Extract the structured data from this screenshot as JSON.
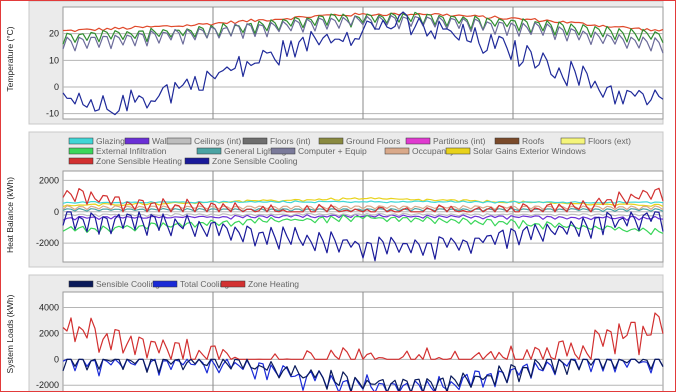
{
  "chart_data": [
    {
      "type": "line",
      "title": "",
      "xlabel": "",
      "ylabel": "Temperature (°C)",
      "ylim": [
        -12,
        30
      ],
      "yticks": [
        20,
        10,
        0,
        -10
      ],
      "legend": [],
      "grid": true,
      "series": [
        {
          "key": "zone_top",
          "color": "#e0492b",
          "profile": [
            [
              0,
              21
            ],
            [
              0.2,
              23
            ],
            [
              0.45,
              27
            ],
            [
              0.6,
              27.5
            ],
            [
              0.8,
              25
            ],
            [
              1,
              21
            ]
          ],
          "noise": 0.6,
          "oscAmp": 0
        },
        {
          "key": "zone_mid",
          "color": "#2f8c2f",
          "profile": [
            [
              0,
              19
            ],
            [
              0.2,
              21
            ],
            [
              0.45,
              26
            ],
            [
              0.6,
              26.5
            ],
            [
              0.8,
              23.5
            ],
            [
              1,
              19
            ]
          ],
          "noise": 0.5,
          "oscAmp": 3.5
        },
        {
          "key": "zone_low",
          "color": "#6b6b9a",
          "profile": [
            [
              0,
              17
            ],
            [
              0.2,
              20
            ],
            [
              0.45,
              25
            ],
            [
              0.6,
              25.5
            ],
            [
              0.8,
              22
            ],
            [
              1,
              16
            ]
          ],
          "noise": 0.5,
          "oscAmp": 4
        },
        {
          "key": "outside",
          "color": "#1f2a9a",
          "profile": [
            [
              0,
              -4
            ],
            [
              0.05,
              -9
            ],
            [
              0.15,
              -3
            ],
            [
              0.3,
              8
            ],
            [
              0.45,
              20
            ],
            [
              0.55,
              24
            ],
            [
              0.65,
              20
            ],
            [
              0.8,
              10
            ],
            [
              0.92,
              -2
            ],
            [
              1,
              -6
            ]
          ],
          "noise": 4.5,
          "oscAmp": 1.5
        }
      ]
    },
    {
      "type": "line",
      "title": "",
      "xlabel": "",
      "ylabel": "Heat Balance (kWh)",
      "ylim": [
        -3200,
        2600
      ],
      "yticks": [
        2000,
        0,
        -2000
      ],
      "grid": true,
      "legend": [
        {
          "label": "Glazing",
          "color": "#3fd6d6"
        },
        {
          "label": "Walls",
          "color": "#6a2fd6"
        },
        {
          "label": "Ceilings (int)",
          "color": "#bdbdbd"
        },
        {
          "label": "Floors (int)",
          "color": "#6e6e6e"
        },
        {
          "label": "Ground Floors",
          "color": "#8a8a40"
        },
        {
          "label": "Partitions (int)",
          "color": "#e03ad0"
        },
        {
          "label": "Roofs",
          "color": "#7a4a2a"
        },
        {
          "label": "Floors (ext)",
          "color": "#f5f57a"
        },
        {
          "label": "External Infiltration",
          "color": "#3ad65a"
        },
        {
          "label": "General Lighting",
          "color": "#4aa3a3"
        },
        {
          "label": "Computer + Equip",
          "color": "#7a7a9a"
        },
        {
          "label": "Occupancy",
          "color": "#d9a98a"
        },
        {
          "label": "Solar Gains Exterior Windows",
          "color": "#e8d21a"
        },
        {
          "label": "Zone Sensible Heating",
          "color": "#d23030"
        },
        {
          "label": "Zone Sensible Cooling",
          "color": "#1a1a9a"
        }
      ],
      "series": [
        {
          "key": "solar",
          "color": "#e8d21a",
          "profile": [
            [
              0,
              400
            ],
            [
              0.5,
              850
            ],
            [
              1,
              400
            ]
          ],
          "noise": 60,
          "oscAmp": 50
        },
        {
          "key": "glazing",
          "color": "#3fd6d6",
          "profile": [
            [
              0,
              600
            ],
            [
              0.5,
              650
            ],
            [
              1,
              600
            ]
          ],
          "noise": 40,
          "oscAmp": 40
        },
        {
          "key": "occupancy",
          "color": "#d9a98a",
          "profile": [
            [
              0,
              300
            ],
            [
              0.5,
              320
            ],
            [
              1,
              300
            ]
          ],
          "noise": 30,
          "oscAmp": 180
        },
        {
          "key": "lighting",
          "color": "#4aa3a3",
          "profile": [
            [
              0,
              150
            ],
            [
              1,
              150
            ]
          ],
          "noise": 20,
          "oscAmp": 120
        },
        {
          "key": "walls",
          "color": "#6a2fd6",
          "profile": [
            [
              0,
              -400
            ],
            [
              0.5,
              -250
            ],
            [
              1,
              -400
            ]
          ],
          "noise": 60,
          "oscAmp": 120
        },
        {
          "key": "ceilings",
          "color": "#bdbdbd",
          "profile": [
            [
              0,
              -200
            ],
            [
              0.5,
              -150
            ],
            [
              1,
              -200
            ]
          ],
          "noise": 40,
          "oscAmp": 80
        },
        {
          "key": "infiltration",
          "color": "#3ad65a",
          "profile": [
            [
              0,
              -1100
            ],
            [
              0.25,
              -700
            ],
            [
              0.5,
              -300
            ],
            [
              0.75,
              -700
            ],
            [
              1,
              -1200
            ]
          ],
          "noise": 120,
          "oscAmp": 250
        },
        {
          "key": "heating",
          "color": "#d23030",
          "profile": [
            [
              0,
              1200
            ],
            [
              0.1,
              700
            ],
            [
              0.25,
              200
            ],
            [
              0.35,
              0
            ],
            [
              0.7,
              0
            ],
            [
              0.85,
              300
            ],
            [
              1,
              1300
            ]
          ],
          "noise": 250,
          "oscAmp": 700,
          "positive": true
        },
        {
          "key": "cooling",
          "color": "#1a1a9a",
          "profile": [
            [
              0,
              -300
            ],
            [
              0.2,
              -700
            ],
            [
              0.4,
              -1700
            ],
            [
              0.55,
              -2100
            ],
            [
              0.7,
              -1700
            ],
            [
              0.85,
              -800
            ],
            [
              1,
              -300
            ]
          ],
          "noise": 300,
          "oscAmp": 900,
          "negative": true
        }
      ]
    },
    {
      "type": "line",
      "title": "",
      "xlabel": "",
      "ylabel": "System Loads (kWh)",
      "ylim": [
        -2600,
        5200
      ],
      "yticks": [
        4000,
        2000,
        0,
        -2000
      ],
      "grid": true,
      "legend": [
        {
          "label": "Sensible Cooling",
          "color": "#0a1a5a"
        },
        {
          "label": "Total Cooling",
          "color": "#1a2ad6"
        },
        {
          "label": "Zone Heating",
          "color": "#d23030"
        }
      ],
      "series": [
        {
          "key": "zone_heating",
          "color": "#d23030",
          "profile": [
            [
              0,
              2600
            ],
            [
              0.1,
              1500
            ],
            [
              0.25,
              300
            ],
            [
              0.32,
              0
            ],
            [
              0.75,
              0
            ],
            [
              0.85,
              700
            ],
            [
              1,
              2800
            ]
          ],
          "noise": 700,
          "oscAmp": 1400,
          "positive": true
        },
        {
          "key": "total_cooling",
          "color": "#1a2ad6",
          "profile": [
            [
              0,
              0
            ],
            [
              0.3,
              -300
            ],
            [
              0.45,
              -1700
            ],
            [
              0.6,
              -2100
            ],
            [
              0.75,
              -900
            ],
            [
              0.85,
              0
            ],
            [
              1,
              0
            ]
          ],
          "noise": 400,
          "oscAmp": 900,
          "negative": true
        },
        {
          "key": "sensible_cooling",
          "color": "#0a1a5a",
          "profile": [
            [
              0,
              0
            ],
            [
              0.3,
              -250
            ],
            [
              0.45,
              -1500
            ],
            [
              0.6,
              -1900
            ],
            [
              0.75,
              -800
            ],
            [
              0.85,
              0
            ],
            [
              1,
              0
            ]
          ],
          "noise": 350,
          "oscAmp": 800,
          "negative": true
        }
      ]
    }
  ]
}
